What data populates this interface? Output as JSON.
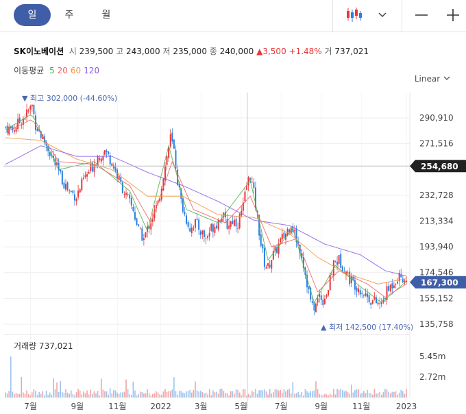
{
  "toolbar": {
    "tabs": [
      "일",
      "주",
      "월"
    ],
    "active_tab": 0,
    "icons": [
      "candlestick-icon",
      "chevron-down-icon",
      "zoom-out-icon",
      "zoom-in-icon"
    ]
  },
  "stock": {
    "name": "SK이노베이션",
    "open_label": "시",
    "open": "239,500",
    "high_label": "고",
    "high": "243,000",
    "low_label": "저",
    "low": "235,000",
    "close_label": "종",
    "close": "240,000",
    "change_arrow": "▲",
    "change": "3,500",
    "change_pct": "+1.48%",
    "volume_label": "거",
    "volume": "737,021"
  },
  "moving_average": {
    "label": "이동평균",
    "periods": [
      {
        "value": "5",
        "color": "#4cb04c"
      },
      {
        "value": "20",
        "color": "#f06060"
      },
      {
        "value": "60",
        "color": "#f5943c"
      },
      {
        "value": "120",
        "color": "#8a58e6"
      }
    ]
  },
  "scale_label": "Linear",
  "chart_data": {
    "type": "candlestick",
    "x_ticks": [
      "7월",
      "9월",
      "11월",
      "2022",
      "3월",
      "5월",
      "7월",
      "9월",
      "11월",
      "2023"
    ],
    "y_ticks": [
      290910,
      271516,
      232728,
      213334,
      193940,
      174546,
      155152,
      135758
    ],
    "y_tick_labels": [
      "290,910",
      "271,516",
      "232,728",
      "213,334",
      "193,940",
      "174,546",
      "155,152",
      "135,758"
    ],
    "ylim": [
      128000,
      310000
    ],
    "crosshair_value": "254,680",
    "current_value": "167,300",
    "high_annotation": {
      "arrow": "▼",
      "label": "최고",
      "value": "302,000",
      "pct": "(-44.60%)"
    },
    "low_annotation": {
      "arrow": "▲",
      "label": "최저",
      "value": "142,500",
      "pct": "(17.40%)"
    },
    "up_color": "#e8373a",
    "down_color": "#2c7ee0",
    "close_series": [
      [
        0,
        284000
      ],
      [
        4,
        282000
      ],
      [
        8,
        288000
      ],
      [
        12,
        294000
      ],
      [
        15,
        300000
      ],
      [
        17,
        286000
      ],
      [
        20,
        278000
      ],
      [
        24,
        268000
      ],
      [
        28,
        256000
      ],
      [
        32,
        244000
      ],
      [
        36,
        236000
      ],
      [
        40,
        232000
      ],
      [
        44,
        244000
      ],
      [
        48,
        252000
      ],
      [
        52,
        262000
      ],
      [
        56,
        266000
      ],
      [
        60,
        258000
      ],
      [
        64,
        244000
      ],
      [
        68,
        232000
      ],
      [
        72,
        222000
      ],
      [
        75,
        206000
      ],
      [
        78,
        200000
      ],
      [
        82,
        214000
      ],
      [
        86,
        226000
      ],
      [
        89,
        248000
      ],
      [
        91,
        262000
      ],
      [
        93,
        276000
      ],
      [
        95,
        266000
      ],
      [
        97,
        244000
      ],
      [
        99,
        228000
      ],
      [
        101,
        218000
      ],
      [
        104,
        208000
      ],
      [
        107,
        212000
      ],
      [
        110,
        206000
      ],
      [
        113,
        200000
      ],
      [
        116,
        208000
      ],
      [
        119,
        212000
      ],
      [
        122,
        218000
      ],
      [
        125,
        210000
      ],
      [
        128,
        214000
      ],
      [
        131,
        212000
      ],
      [
        134,
        224000
      ],
      [
        136,
        240000
      ],
      [
        138,
        248000
      ],
      [
        140,
        234000
      ],
      [
        142,
        216000
      ],
      [
        144,
        196000
      ],
      [
        146,
        182000
      ],
      [
        148,
        178000
      ],
      [
        150,
        186000
      ],
      [
        152,
        190000
      ],
      [
        155,
        198000
      ],
      [
        158,
        204000
      ],
      [
        161,
        212000
      ],
      [
        164,
        200000
      ],
      [
        167,
        188000
      ],
      [
        169,
        174000
      ],
      [
        171,
        160000
      ],
      [
        173,
        148000
      ],
      [
        175,
        150000
      ],
      [
        177,
        158000
      ],
      [
        179,
        154000
      ],
      [
        182,
        162000
      ],
      [
        185,
        182000
      ],
      [
        188,
        184000
      ],
      [
        191,
        178000
      ],
      [
        194,
        170000
      ],
      [
        197,
        166000
      ],
      [
        200,
        162000
      ],
      [
        203,
        158000
      ],
      [
        206,
        154000
      ],
      [
        209,
        152000
      ],
      [
        212,
        150000
      ],
      [
        214,
        158000
      ],
      [
        217,
        164000
      ],
      [
        220,
        170000
      ],
      [
        223,
        172000
      ],
      [
        226,
        167300
      ]
    ],
    "ma5": [
      [
        0,
        282000
      ],
      [
        15,
        294000
      ],
      [
        30,
        252000
      ],
      [
        50,
        258000
      ],
      [
        70,
        236000
      ],
      [
        80,
        206000
      ],
      [
        92,
        270000
      ],
      [
        102,
        222000
      ],
      [
        120,
        212000
      ],
      [
        138,
        244000
      ],
      [
        148,
        184000
      ],
      [
        162,
        208000
      ],
      [
        174,
        152000
      ],
      [
        186,
        180000
      ],
      [
        200,
        164000
      ],
      [
        212,
        152000
      ],
      [
        226,
        168000
      ]
    ],
    "ma20": [
      [
        0,
        280000
      ],
      [
        15,
        290000
      ],
      [
        30,
        258000
      ],
      [
        50,
        256000
      ],
      [
        70,
        240000
      ],
      [
        82,
        212000
      ],
      [
        94,
        258000
      ],
      [
        106,
        222000
      ],
      [
        124,
        212000
      ],
      [
        138,
        232000
      ],
      [
        150,
        194000
      ],
      [
        164,
        200000
      ],
      [
        176,
        160000
      ],
      [
        188,
        176000
      ],
      [
        204,
        166000
      ],
      [
        214,
        156000
      ],
      [
        226,
        166000
      ]
    ],
    "ma60": [
      [
        0,
        276000
      ],
      [
        20,
        274000
      ],
      [
        40,
        260000
      ],
      [
        60,
        252000
      ],
      [
        80,
        232000
      ],
      [
        100,
        232000
      ],
      [
        120,
        218000
      ],
      [
        140,
        216000
      ],
      [
        160,
        204000
      ],
      [
        176,
        186000
      ],
      [
        192,
        174000
      ],
      [
        210,
        166000
      ],
      [
        226,
        170000
      ]
    ],
    "ma120": [
      [
        0,
        256000
      ],
      [
        20,
        270000
      ],
      [
        40,
        262000
      ],
      [
        60,
        262000
      ],
      [
        80,
        250000
      ],
      [
        100,
        240000
      ],
      [
        120,
        228000
      ],
      [
        140,
        214000
      ],
      [
        160,
        210000
      ],
      [
        180,
        196000
      ],
      [
        200,
        188000
      ],
      [
        214,
        176000
      ],
      [
        226,
        172000
      ]
    ],
    "volume_label": "거래량",
    "volume_value": "737,021",
    "volume_ticks": [
      "5.45m",
      "2.72m"
    ]
  }
}
